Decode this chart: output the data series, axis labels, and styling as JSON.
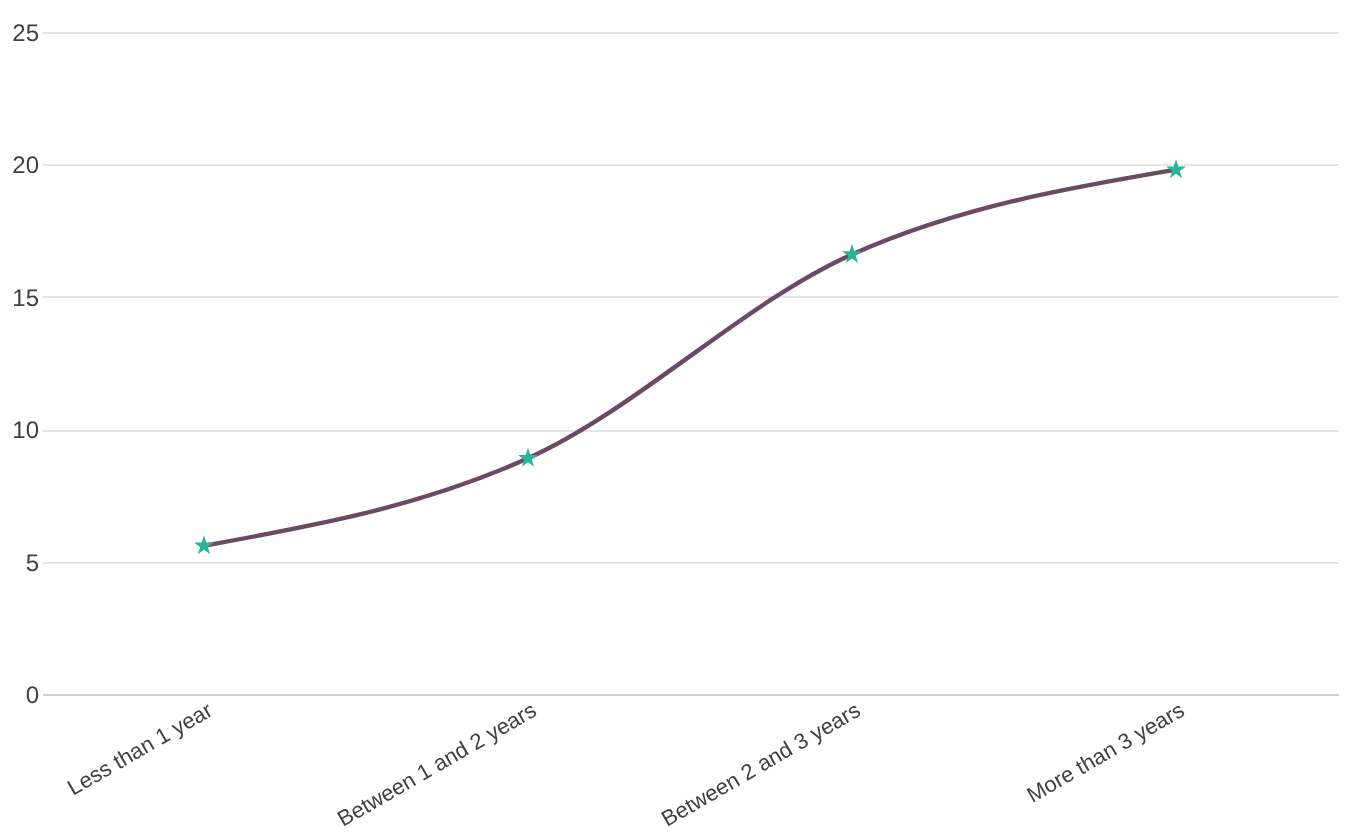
{
  "chart_data": {
    "type": "line",
    "categories": [
      "Less than 1 year",
      "Between 1 and 2 years",
      "Between 2 and 3 years",
      "More than 3 years"
    ],
    "series": [
      {
        "color": "#6b4a66",
        "marker": "none",
        "values": [
          5.6,
          8.9,
          16.6,
          19.8
        ]
      },
      {
        "type": "scatter",
        "color": "#2bb597",
        "marker": "star",
        "values": [
          5.6,
          8.9,
          16.6,
          19.8
        ]
      }
    ],
    "ylim": [
      0,
      25
    ],
    "yticks": [
      0,
      5,
      10,
      15,
      20,
      25
    ],
    "grid": "y",
    "line_style": "solid"
  }
}
